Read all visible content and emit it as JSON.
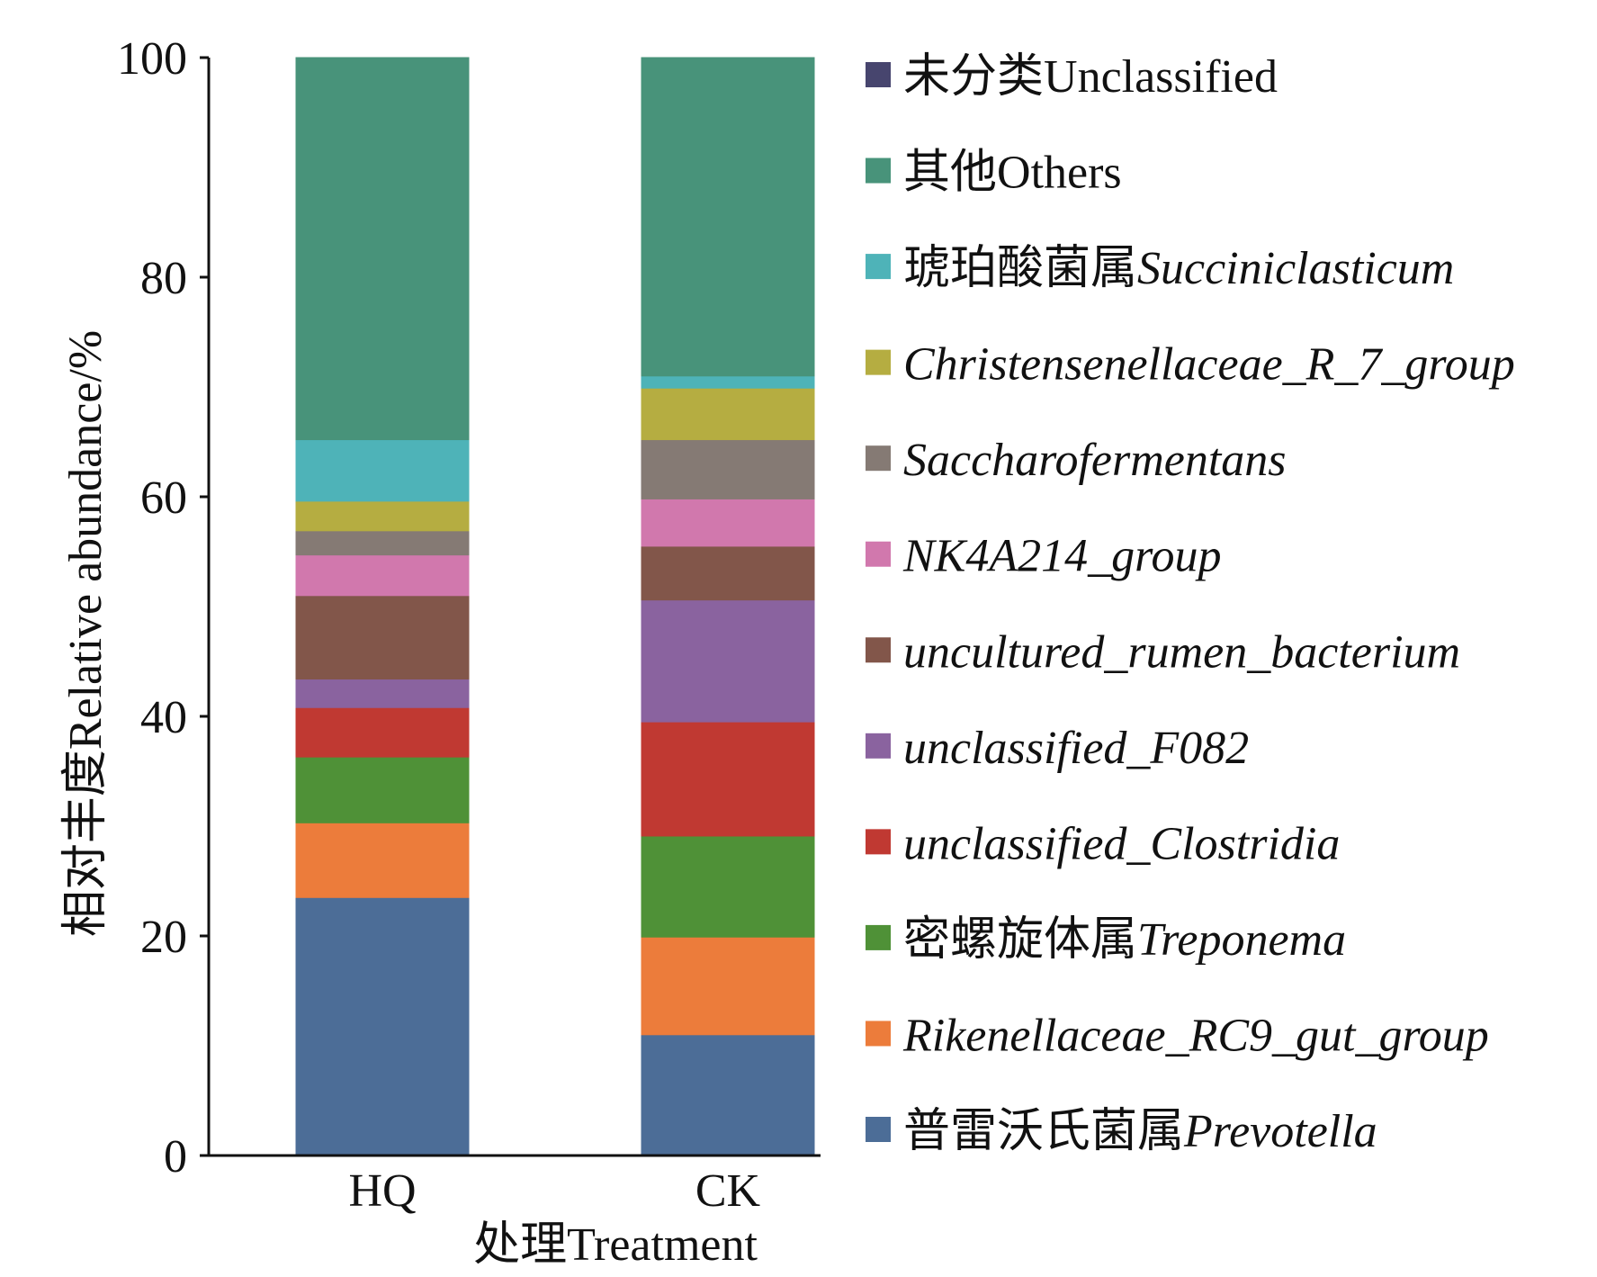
{
  "chart_data": {
    "type": "bar",
    "stacked": true,
    "categories": [
      "HQ",
      "CK"
    ],
    "xlabel": "处理Treatment",
    "ylabel": "相对丰度Relative abundance/%",
    "ylim": [
      0,
      100
    ],
    "yticks": [
      0,
      20,
      40,
      60,
      80,
      100
    ],
    "legend_position": "right",
    "series": [
      {
        "name_cn": "普雷沃氏菌属",
        "name": "Prevotella",
        "italic": true,
        "color": "#4c6d97",
        "values": [
          23.5,
          11.0
        ]
      },
      {
        "name_cn": "",
        "name": "Rikenellaceae_RC9_gut_group",
        "italic": true,
        "color": "#ec7c3b",
        "values": [
          6.8,
          8.9
        ]
      },
      {
        "name_cn": "密螺旋体属",
        "name": "Treponema",
        "italic": true,
        "color": "#4f9137",
        "values": [
          6.0,
          9.2
        ]
      },
      {
        "name_cn": "",
        "name": "unclassified_Clostridia",
        "italic": true,
        "color": "#c03932",
        "values": [
          4.5,
          10.4
        ]
      },
      {
        "name_cn": "",
        "name": "unclassified_F082",
        "italic": true,
        "color": "#8a639f",
        "values": [
          2.6,
          11.1
        ]
      },
      {
        "name_cn": "",
        "name": "uncultured_rumen_bacterium",
        "italic": true,
        "color": "#82564a",
        "values": [
          7.6,
          4.9
        ]
      },
      {
        "name_cn": "",
        "name": "NK4A214_group",
        "italic": true,
        "color": "#d178ad",
        "values": [
          3.7,
          4.3
        ]
      },
      {
        "name_cn": "",
        "name": "Saccharofermentans",
        "italic": true,
        "color": "#857a74",
        "values": [
          2.2,
          5.4
        ]
      },
      {
        "name_cn": "",
        "name": "Christensenellaceae_R_7_group",
        "italic": true,
        "color": "#b5ad41",
        "values": [
          2.7,
          4.7
        ]
      },
      {
        "name_cn": "琥珀酸菌属",
        "name": "Succiniclasticum",
        "italic": true,
        "color": "#4eb3b8",
        "values": [
          5.6,
          1.1
        ]
      },
      {
        "name_cn": "其他",
        "name": "Others",
        "italic": false,
        "color": "#48937a",
        "values": [
          34.8,
          29.0
        ]
      },
      {
        "name_cn": "未分类",
        "name": "Unclassified",
        "italic": false,
        "color": "#47456e",
        "values": [
          0,
          0
        ]
      }
    ]
  }
}
